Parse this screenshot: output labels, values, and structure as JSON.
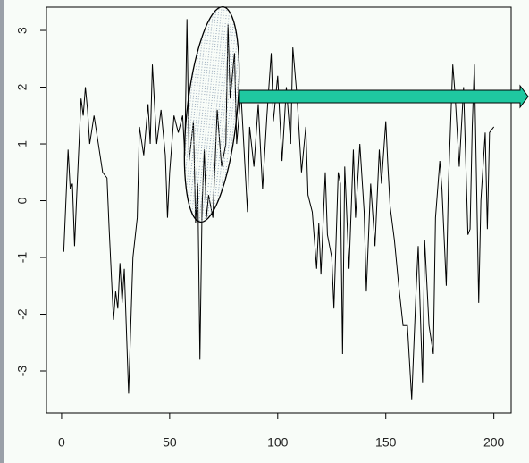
{
  "chart_data": {
    "type": "line",
    "x": [
      1,
      3,
      4,
      5,
      6,
      7,
      9,
      10,
      11,
      12,
      13,
      15,
      17,
      19,
      21,
      22,
      24,
      25,
      26,
      27,
      28,
      29,
      31,
      33,
      35,
      36,
      38,
      40,
      41,
      42,
      44,
      46,
      48,
      49,
      50,
      52,
      54,
      56,
      57,
      58,
      59,
      61,
      62,
      63,
      64,
      65,
      66,
      67,
      68,
      70,
      72,
      74,
      76,
      77,
      78,
      80,
      81,
      83,
      85,
      86,
      87,
      89,
      91,
      93,
      95,
      97,
      98,
      100,
      102,
      104,
      106,
      107,
      109,
      111,
      113,
      114,
      116,
      117,
      118,
      119,
      120,
      122,
      123,
      125,
      126,
      128,
      129,
      130,
      131,
      133,
      135,
      136,
      138,
      140,
      141,
      143,
      145,
      147,
      148,
      150,
      151,
      152,
      154,
      156,
      158,
      160,
      162,
      164,
      165,
      167,
      168,
      170,
      172,
      173,
      175,
      176,
      178,
      179,
      181,
      182,
      184,
      186,
      188,
      189,
      190,
      191,
      193,
      194,
      196,
      197,
      198,
      200
    ],
    "values": [
      -0.9,
      0.9,
      0.2,
      0.3,
      -0.8,
      0.1,
      1.8,
      1.5,
      2.0,
      1.6,
      1.0,
      1.5,
      1.0,
      0.5,
      0.4,
      -0.5,
      -2.1,
      -1.6,
      -1.9,
      -1.1,
      -1.8,
      -1.2,
      -3.4,
      -1.0,
      -0.3,
      1.3,
      0.8,
      1.7,
      1.0,
      2.4,
      1.0,
      1.6,
      0.8,
      -0.3,
      0.5,
      1.5,
      1.2,
      1.5,
      0.8,
      3.2,
      0.7,
      1.4,
      -0.4,
      0.3,
      -2.8,
      -0.1,
      0.9,
      -0.3,
      0.1,
      -0.3,
      1.6,
      0.6,
      1.0,
      3.1,
      1.8,
      2.6,
      1.0,
      1.9,
      0.5,
      -0.2,
      1.3,
      0.6,
      1.7,
      0.2,
      1.5,
      2.6,
      1.4,
      2.2,
      0.7,
      2.0,
      1.0,
      2.7,
      1.8,
      0.5,
      1.3,
      0.1,
      -0.2,
      -0.7,
      -1.2,
      -0.4,
      -1.3,
      0.5,
      -0.6,
      -1.0,
      -1.9,
      0.5,
      0.3,
      -2.7,
      0.6,
      -1.2,
      0.9,
      -0.3,
      1.0,
      -0.2,
      -1.6,
      0.3,
      -0.8,
      0.9,
      0.3,
      1.4,
      0.6,
      -0.1,
      -0.7,
      -1.5,
      -2.2,
      -2.2,
      -3.5,
      -1.6,
      -0.8,
      -3.2,
      -0.7,
      -2.2,
      -2.7,
      -0.3,
      0.7,
      0.2,
      -1.5,
      0.3,
      2.4,
      1.9,
      0.6,
      2.0,
      -0.6,
      -0.5,
      1.3,
      2.4,
      -1.8,
      0.0,
      1.2,
      -0.5,
      1.2,
      1.3
    ],
    "color": "#000000",
    "xlim": [
      -7,
      208
    ],
    "ylim": [
      -3.74,
      3.41
    ],
    "xticks": [
      0,
      50,
      100,
      150,
      200
    ],
    "yticks": [
      -3,
      -2,
      -1,
      0,
      1,
      2,
      3
    ]
  }
}
